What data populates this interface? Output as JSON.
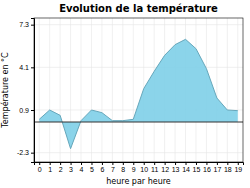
{
  "chart_data": {
    "type": "area",
    "title": "Evolution de la température",
    "xlabel": "heure par heure",
    "ylabel": "Température en °C",
    "x": [
      0,
      1,
      2,
      3,
      4,
      5,
      6,
      7,
      8,
      9,
      10,
      11,
      12,
      13,
      14,
      15,
      16,
      17,
      18,
      19
    ],
    "values": [
      0.2,
      0.9,
      0.5,
      -2.0,
      0.1,
      0.9,
      0.7,
      0.1,
      0.1,
      0.2,
      2.5,
      3.8,
      5.0,
      5.8,
      6.2,
      5.5,
      4.0,
      1.8,
      0.9,
      0.85
    ],
    "color": "#7ecfe8",
    "xlim": [
      -0.5,
      19.5
    ],
    "xticks": [
      0,
      1,
      2,
      3,
      4,
      5,
      6,
      7,
      8,
      9,
      10,
      11,
      12,
      13,
      14,
      15,
      16,
      17,
      18,
      19
    ],
    "ylim": [
      -3.0,
      7.8
    ],
    "yticks": [
      -2.3,
      0.9,
      4.1,
      7.3
    ],
    "grid": true
  }
}
